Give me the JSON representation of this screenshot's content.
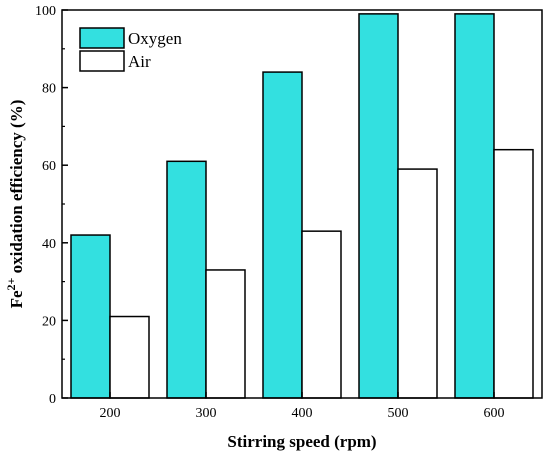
{
  "chart_data": {
    "type": "bar",
    "categories": [
      "200",
      "300",
      "400",
      "500",
      "600"
    ],
    "series": [
      {
        "name": "Oxygen",
        "values": [
          42,
          61,
          84,
          99,
          99
        ],
        "color": "#33e0e0"
      },
      {
        "name": "Air",
        "values": [
          21,
          33,
          43,
          59,
          64
        ],
        "color": "#ffffff"
      }
    ],
    "xlabel": "Stirring speed (rpm)",
    "ylabel": {
      "prefix": "Fe",
      "sup": "2+",
      "rest": " oxidation efficiency (%)"
    },
    "ylim": [
      0,
      100
    ],
    "yticks": [
      0,
      20,
      40,
      60,
      80,
      100
    ],
    "legend": "top-left",
    "grid": false
  }
}
